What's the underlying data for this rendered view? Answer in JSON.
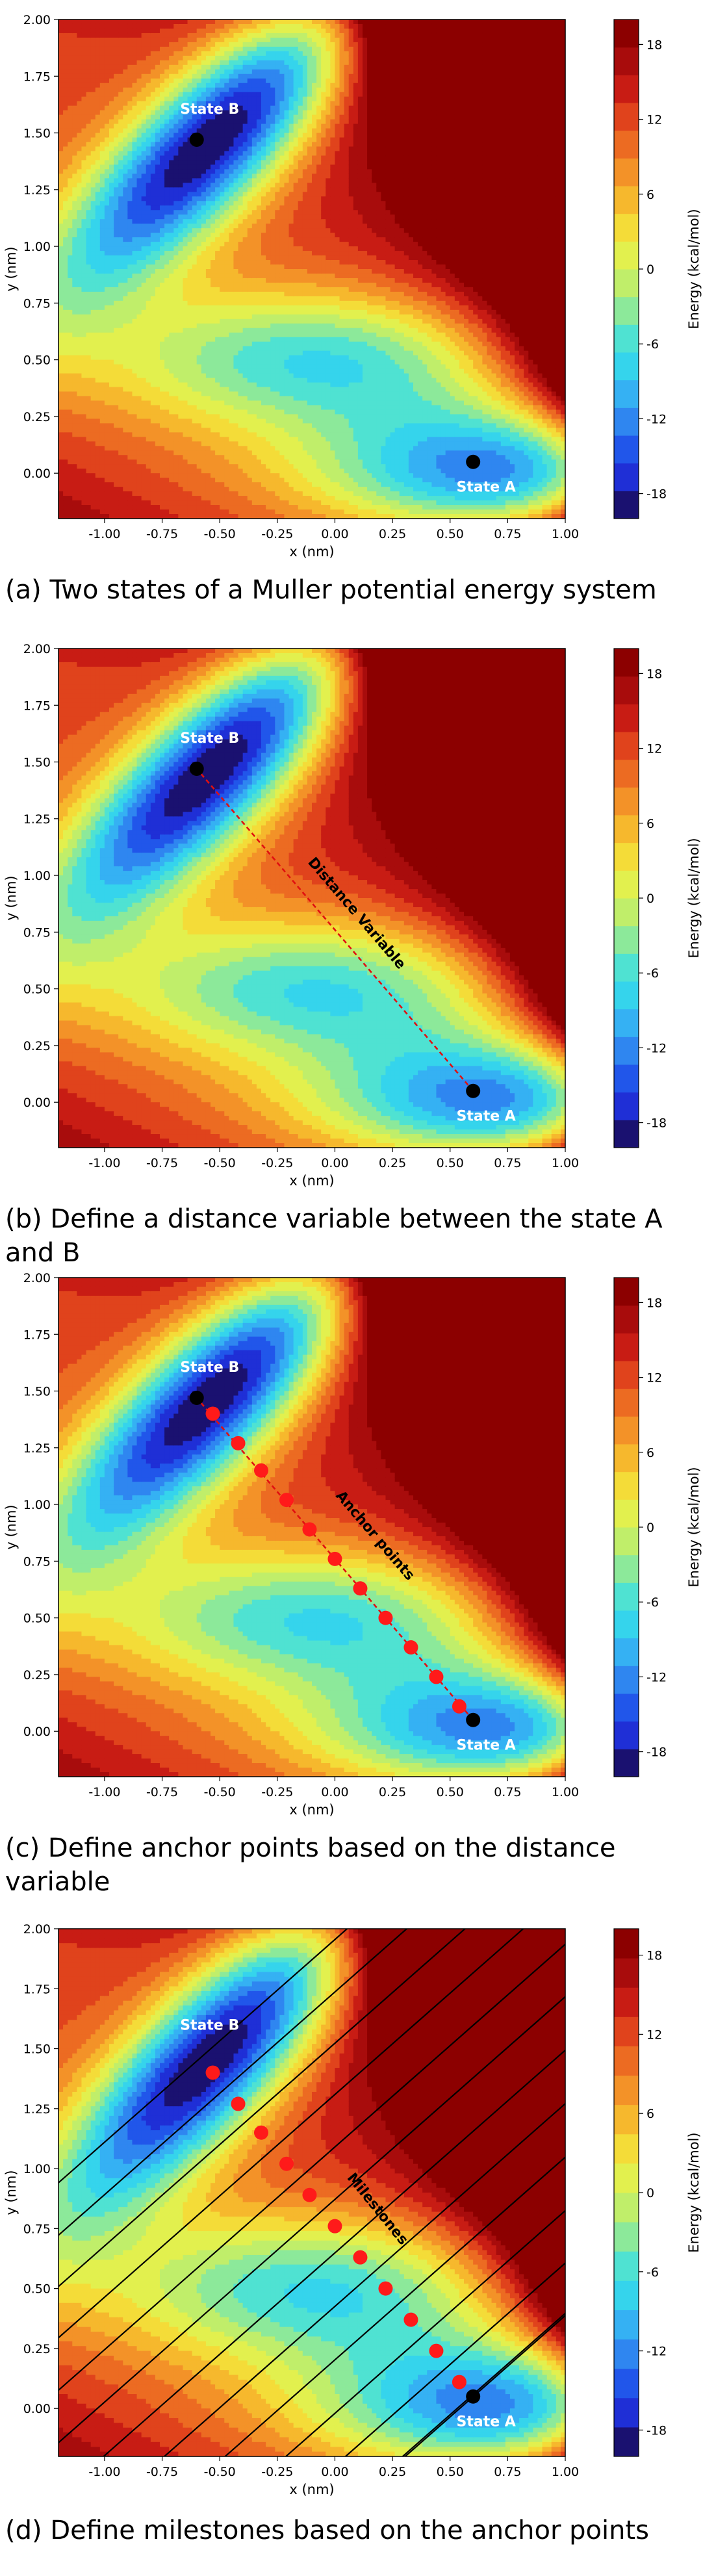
{
  "figure": {
    "colorbar_label": "Energy (kcal/mol)",
    "colorbar_ticks": [
      18,
      12,
      6,
      0,
      -6,
      -12,
      -18
    ],
    "colors": {
      "levels": [
        "#1a1170",
        "#1f2fd6",
        "#2156ea",
        "#2f86f0",
        "#35b1f3",
        "#35d4ec",
        "#4fe2d2",
        "#8ce99a",
        "#c0ee6a",
        "#e2f04e",
        "#f4dc38",
        "#f6b82d",
        "#f39228",
        "#ec6b22",
        "#e0431c",
        "#c81c14",
        "#a80c0c",
        "#8c0000"
      ],
      "point_black": "#000000",
      "point_red": "#ff1a1a"
    }
  },
  "chart_data": [
    {
      "type": "contour",
      "caption": "(a) Two states of a Muller potential energy system",
      "xlabel": "x (nm)",
      "ylabel": "y (nm)",
      "xlim": [
        -1.2,
        1.0
      ],
      "ylim": [
        -0.2,
        2.0
      ],
      "xticks": [
        -1.0,
        -0.75,
        -0.5,
        -0.25,
        0.0,
        0.25,
        0.5,
        0.75,
        1.0
      ],
      "yticks": [
        0.0,
        0.25,
        0.5,
        0.75,
        1.0,
        1.25,
        1.5,
        1.75,
        2.0
      ],
      "clim": [
        -20,
        20
      ],
      "states": [
        {
          "label": "State A",
          "x": 0.6,
          "y": 0.05
        },
        {
          "label": "State B",
          "x": -0.6,
          "y": 1.47
        }
      ],
      "annotation": "",
      "anchors": [],
      "milestones": false
    },
    {
      "type": "contour",
      "caption": "(b) Define a distance variable between the state A and B",
      "xlabel": "x (nm)",
      "ylabel": "y (nm)",
      "xlim": [
        -1.2,
        1.0
      ],
      "ylim": [
        -0.2,
        2.0
      ],
      "xticks": [
        -1.0,
        -0.75,
        -0.5,
        -0.25,
        0.0,
        0.25,
        0.5,
        0.75,
        1.0
      ],
      "yticks": [
        0.0,
        0.25,
        0.5,
        0.75,
        1.0,
        1.25,
        1.5,
        1.75,
        2.0
      ],
      "clim": [
        -20,
        20
      ],
      "states": [
        {
          "label": "State A",
          "x": 0.6,
          "y": 0.05
        },
        {
          "label": "State B",
          "x": -0.6,
          "y": 1.47
        }
      ],
      "distance_line": true,
      "annotation": "Distance Variable",
      "anchors": [],
      "milestones": false
    },
    {
      "type": "contour",
      "caption": "(c) Define anchor points based on the distance variable",
      "xlabel": "x (nm)",
      "ylabel": "y (nm)",
      "xlim": [
        -1.2,
        1.0
      ],
      "ylim": [
        -0.2,
        2.0
      ],
      "xticks": [
        -1.0,
        -0.75,
        -0.5,
        -0.25,
        0.0,
        0.25,
        0.5,
        0.75,
        1.0
      ],
      "yticks": [
        0.0,
        0.25,
        0.5,
        0.75,
        1.0,
        1.25,
        1.5,
        1.75,
        2.0
      ],
      "clim": [
        -20,
        20
      ],
      "states": [
        {
          "label": "State A",
          "x": 0.6,
          "y": 0.05
        },
        {
          "label": "State B",
          "x": -0.6,
          "y": 1.47
        }
      ],
      "distance_line": true,
      "annotation": "Anchor points",
      "anchors": [
        [
          -0.53,
          1.4
        ],
        [
          -0.42,
          1.27
        ],
        [
          -0.32,
          1.15
        ],
        [
          -0.21,
          1.02
        ],
        [
          -0.11,
          0.89
        ],
        [
          0.0,
          0.76
        ],
        [
          0.11,
          0.63
        ],
        [
          0.22,
          0.5
        ],
        [
          0.33,
          0.37
        ],
        [
          0.44,
          0.24
        ],
        [
          0.54,
          0.11
        ]
      ],
      "milestones": false
    },
    {
      "type": "contour",
      "caption": "(d) Define milestones based on the anchor points",
      "xlabel": "x (nm)",
      "ylabel": "y (nm)",
      "xlim": [
        -1.2,
        1.0
      ],
      "ylim": [
        -0.2,
        2.0
      ],
      "xticks": [
        -1.0,
        -0.75,
        -0.5,
        -0.25,
        0.0,
        0.25,
        0.5,
        0.75,
        1.0
      ],
      "yticks": [
        0.0,
        0.25,
        0.5,
        0.75,
        1.0,
        1.25,
        1.5,
        1.75,
        2.0
      ],
      "clim": [
        -20,
        20
      ],
      "states": [
        {
          "label": "State A",
          "x": 0.6,
          "y": 0.05
        },
        {
          "label": "State B",
          "x": -0.6,
          "y": 1.47,
          "hide_dot": true
        }
      ],
      "annotation": "Milestones",
      "anchors": [
        [
          -0.53,
          1.4
        ],
        [
          -0.42,
          1.27
        ],
        [
          -0.32,
          1.15
        ],
        [
          -0.21,
          1.02
        ],
        [
          -0.11,
          0.89
        ],
        [
          0.0,
          0.76
        ],
        [
          0.11,
          0.63
        ],
        [
          0.22,
          0.5
        ],
        [
          0.33,
          0.37
        ],
        [
          0.44,
          0.24
        ],
        [
          0.54,
          0.11
        ]
      ],
      "milestones": true
    }
  ]
}
